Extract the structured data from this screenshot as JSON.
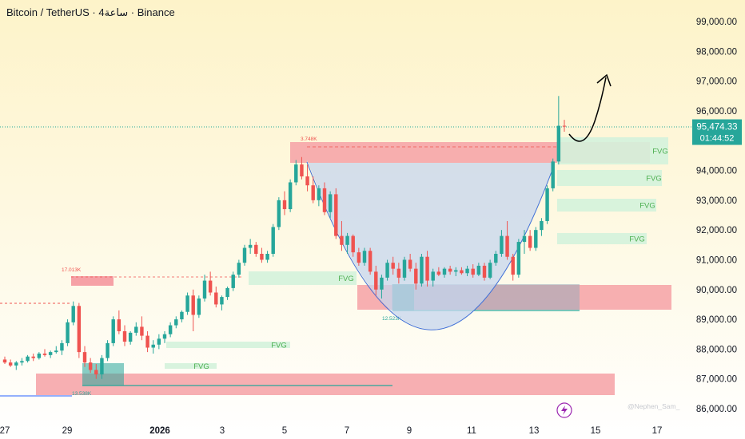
{
  "title": "Bitcoin / TetherUS · 4ساعة · Binance",
  "chart_data": {
    "type": "candlestick",
    "y_ticks": [
      "99,000.00",
      "98,000.00",
      "97,000.00",
      "96,000.00",
      "94,000.00",
      "93,000.00",
      "92,000.00",
      "91,000.00",
      "90,000.00",
      "89,000.00",
      "88,000.00",
      "87,000.00",
      "86,000.00"
    ],
    "x_ticks": [
      "27",
      "29",
      "2026",
      "3",
      "5",
      "7",
      "9",
      "11",
      "13",
      "15",
      "17"
    ],
    "ylim": [
      85800,
      99700
    ],
    "current_price": "95,474.33",
    "countdown": "01:44:52",
    "current_value": 95474.33,
    "fvg_label": "FVG",
    "volume_labels": [
      "17.013K",
      "3.748K",
      "12.523K",
      "13.538K"
    ],
    "watermark": "@Nephen_Sam_",
    "colors": {
      "up": "#26a69a",
      "down": "#ef5350",
      "bowl": "#c5d6ee",
      "zone_red": "#f6a1a6",
      "zone_green": "#d4f2dc"
    },
    "candles": [
      [
        87650,
        87750,
        87500,
        87550
      ],
      [
        87550,
        87650,
        87400,
        87450
      ],
      [
        87450,
        87600,
        87300,
        87550
      ],
      [
        87550,
        87700,
        87450,
        87600
      ],
      [
        87600,
        87800,
        87550,
        87750
      ],
      [
        87750,
        87850,
        87600,
        87700
      ],
      [
        87700,
        87900,
        87650,
        87850
      ],
      [
        87850,
        88000,
        87750,
        87800
      ],
      [
        87800,
        87950,
        87700,
        87900
      ],
      [
        87900,
        88100,
        87850,
        87950
      ],
      [
        87950,
        88300,
        87800,
        88200
      ],
      [
        88200,
        89000,
        88100,
        88900
      ],
      [
        88900,
        89600,
        88800,
        89450
      ],
      [
        89450,
        89550,
        87700,
        87900
      ],
      [
        87900,
        88100,
        87400,
        87550
      ],
      [
        87550,
        87700,
        87200,
        87300
      ],
      [
        87300,
        87500,
        87000,
        87150
      ],
      [
        87150,
        87800,
        87000,
        87700
      ],
      [
        87700,
        88300,
        87600,
        88200
      ],
      [
        88200,
        89100,
        88100,
        89000
      ],
      [
        89000,
        89300,
        88500,
        88600
      ],
      [
        88600,
        88800,
        88100,
        88250
      ],
      [
        88250,
        88600,
        88150,
        88550
      ],
      [
        88550,
        88900,
        88450,
        88750
      ],
      [
        88750,
        89100,
        88300,
        88450
      ],
      [
        88450,
        88600,
        87900,
        88050
      ],
      [
        88050,
        88300,
        87850,
        88150
      ],
      [
        88150,
        88500,
        88000,
        88350
      ],
      [
        88350,
        88600,
        88200,
        88500
      ],
      [
        88500,
        88900,
        88400,
        88800
      ],
      [
        88800,
        89100,
        88700,
        89000
      ],
      [
        89000,
        89300,
        88900,
        89250
      ],
      [
        89250,
        89900,
        89150,
        89800
      ],
      [
        89800,
        90000,
        88600,
        89150
      ],
      [
        89150,
        89800,
        89050,
        89700
      ],
      [
        89700,
        90500,
        89600,
        90300
      ],
      [
        90300,
        90600,
        89800,
        89900
      ],
      [
        89900,
        90100,
        89400,
        89500
      ],
      [
        89500,
        89800,
        89300,
        89750
      ],
      [
        89750,
        90100,
        89650,
        90050
      ],
      [
        90050,
        90600,
        89950,
        90500
      ],
      [
        90500,
        91000,
        90400,
        90900
      ],
      [
        90900,
        91500,
        90800,
        91400
      ],
      [
        91400,
        91700,
        91200,
        91500
      ],
      [
        91500,
        91600,
        91100,
        91200
      ],
      [
        91200,
        91400,
        90900,
        91000
      ],
      [
        91000,
        91300,
        90900,
        91200
      ],
      [
        91200,
        92200,
        91100,
        92100
      ],
      [
        92100,
        93100,
        92000,
        93000
      ],
      [
        93000,
        93300,
        92500,
        92700
      ],
      [
        92700,
        93700,
        92600,
        93600
      ],
      [
        93600,
        94350,
        93500,
        94200
      ],
      [
        94200,
        94450,
        93700,
        93800
      ],
      [
        93800,
        94200,
        93300,
        93500
      ],
      [
        93500,
        93800,
        92900,
        93000
      ],
      [
        93000,
        93500,
        92800,
        93400
      ],
      [
        93400,
        93600,
        92500,
        92600
      ],
      [
        92600,
        93300,
        92400,
        93200
      ],
      [
        93200,
        93400,
        91700,
        91800
      ],
      [
        91800,
        92300,
        91300,
        91500
      ],
      [
        91500,
        91900,
        91200,
        91800
      ],
      [
        91800,
        91850,
        91100,
        91250
      ],
      [
        91250,
        91400,
        90800,
        90900
      ],
      [
        90900,
        91400,
        90800,
        91300
      ],
      [
        91300,
        91400,
        90500,
        90600
      ],
      [
        90600,
        90800,
        89800,
        90000
      ],
      [
        90000,
        90500,
        89700,
        90400
      ],
      [
        90400,
        91000,
        90300,
        90900
      ],
      [
        90900,
        91100,
        90500,
        90700
      ],
      [
        90700,
        90900,
        90200,
        90400
      ],
      [
        90400,
        91100,
        90300,
        91000
      ],
      [
        91000,
        91200,
        90600,
        90700
      ],
      [
        90700,
        90900,
        90000,
        90200
      ],
      [
        90200,
        91200,
        90100,
        91100
      ],
      [
        91100,
        91300,
        90100,
        90300
      ],
      [
        90300,
        90700,
        90100,
        90600
      ],
      [
        90600,
        90750,
        90450,
        90500
      ],
      [
        90500,
        90750,
        90400,
        90700
      ],
      [
        90700,
        90800,
        90500,
        90600
      ],
      [
        90600,
        90750,
        90450,
        90650
      ],
      [
        90650,
        90750,
        90500,
        90550
      ],
      [
        90550,
        90800,
        90450,
        90700
      ],
      [
        90700,
        90850,
        90400,
        90500
      ],
      [
        90500,
        90900,
        90450,
        90800
      ],
      [
        90800,
        90900,
        90300,
        90400
      ],
      [
        90400,
        91000,
        90350,
        90900
      ],
      [
        90900,
        91300,
        90800,
        91200
      ],
      [
        91200,
        92000,
        91100,
        91800
      ],
      [
        91800,
        92300,
        91000,
        91100
      ],
      [
        91100,
        91200,
        90300,
        90500
      ],
      [
        90500,
        91700,
        90400,
        91600
      ],
      [
        91600,
        92000,
        91200,
        91800
      ],
      [
        91800,
        92000,
        91300,
        91400
      ],
      [
        91400,
        92100,
        91300,
        92000
      ],
      [
        92000,
        92400,
        91800,
        92300
      ],
      [
        92300,
        93500,
        92200,
        93400
      ],
      [
        93400,
        94400,
        93300,
        94300
      ],
      [
        94300,
        96500,
        94200,
        95500
      ],
      [
        95500,
        95700,
        95300,
        95474
      ]
    ],
    "annotation": "arrow up"
  }
}
